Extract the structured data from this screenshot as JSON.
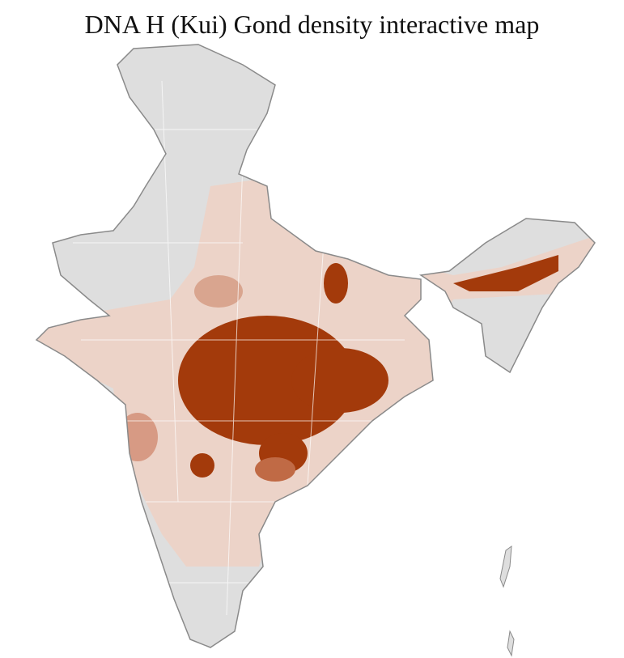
{
  "title": "DNA H (Kui) Gond density interactive map"
}
